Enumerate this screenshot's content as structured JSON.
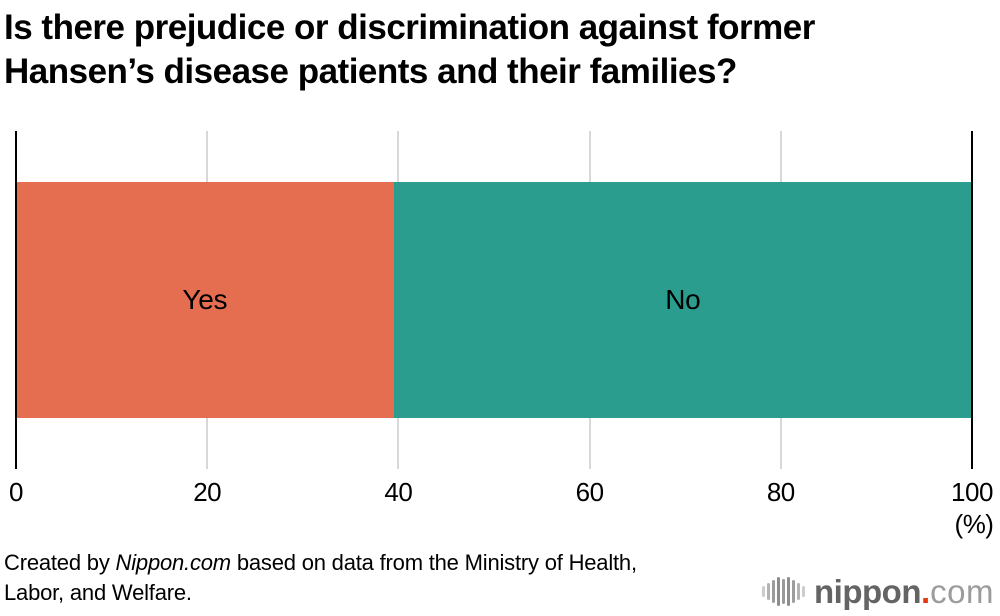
{
  "title": {
    "line1": "Is there prejudice or discrimination against former",
    "line2": "Hansen’s disease patients and their families?"
  },
  "chart_data": {
    "type": "bar",
    "subtype": "horizontal-stacked-single-bar",
    "title": "Is there prejudice or discrimination against former Hansen’s disease patients and their families?",
    "categories": [
      "Yes",
      "No"
    ],
    "values": [
      39.5,
      60.5
    ],
    "unit": "%",
    "xlabel": "(%)",
    "ylabel": "",
    "xlim": [
      0,
      100
    ],
    "x_ticks": [
      0,
      20,
      40,
      60,
      80,
      100
    ],
    "grid": true,
    "legend_position": "none (labels inside segments)",
    "colors": {
      "yes": "#E56E50",
      "no": "#2A9D8F",
      "grid": "#D8D8D8",
      "axis": "#000000"
    }
  },
  "segments": [
    {
      "label": "Yes",
      "value": 39.5,
      "color": "#E56E50"
    },
    {
      "label": "No",
      "value": 60.5,
      "color": "#2A9D8F"
    }
  ],
  "axis": {
    "ticks": [
      "0",
      "20",
      "40",
      "60",
      "80",
      "100"
    ],
    "unit_label": "(%)"
  },
  "footer": {
    "credit_prefix": "Created by ",
    "credit_brand": "Nippon.com",
    "credit_line1_rest": " based on data from the Ministry of Health,",
    "credit_line2": "Labor, and Welfare."
  },
  "logo": {
    "icon": "audio-wave-icon",
    "name": "nippon",
    "dot": ".",
    "tld": "com",
    "dot_color": "#e8380d"
  }
}
